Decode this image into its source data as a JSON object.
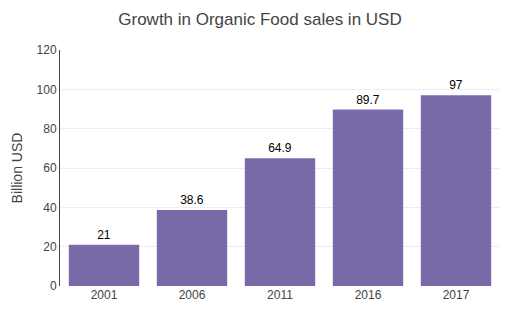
{
  "chart_data": {
    "type": "bar",
    "title": "Growth in Organic Food sales in USD",
    "ylabel": "Billion USD",
    "categories": [
      "2001",
      "2006",
      "2011",
      "2016",
      "2017"
    ],
    "values": [
      21,
      38.6,
      64.9,
      89.7,
      97
    ],
    "color": "#7b6aaa",
    "ylim": [
      0,
      120
    ],
    "yticks": [
      0,
      20,
      40,
      60,
      80,
      100,
      120
    ],
    "grid": true,
    "data_labels": true
  }
}
